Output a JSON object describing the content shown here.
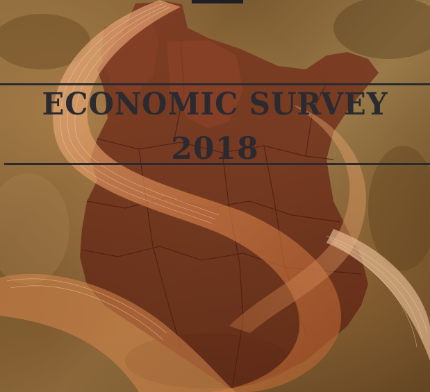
{
  "cover": {
    "title": "ECONOMIC SURVEY",
    "year": "2018"
  },
  "colors": {
    "background": "#7a5a30",
    "map_fill": "#6b2f1c",
    "ribbon": "#d9935a",
    "text": "#2b2a30",
    "rules": "#2a2a30"
  },
  "graphics": {
    "map": "kenya-map-silhouette",
    "ribbon": "swirl-ribbon"
  }
}
